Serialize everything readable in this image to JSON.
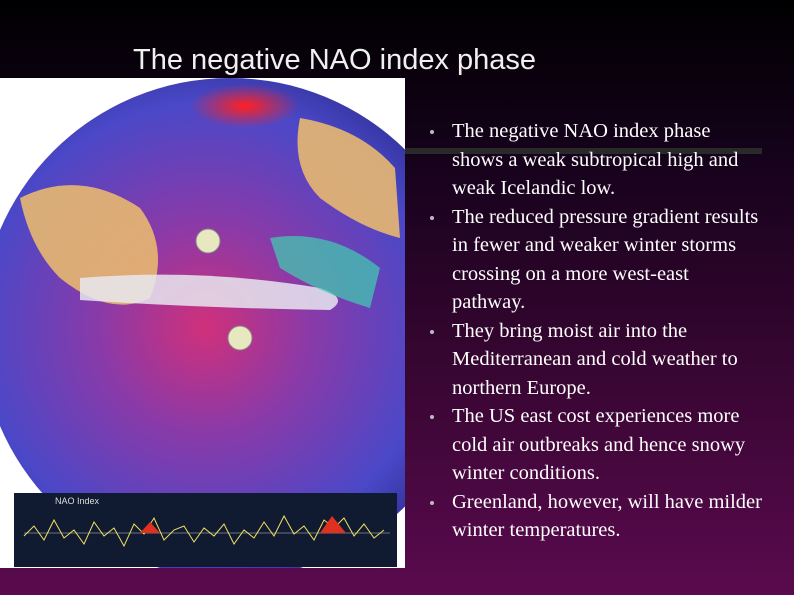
{
  "slide": {
    "title": "The negative NAO index phase",
    "image_label": "NAO Index",
    "bullets": [
      "The negative NAO index phase shows a weak subtropical high and weak Icelandic low.",
      "The reduced pressure gradient results in fewer and weaker winter storms crossing on a more west-east pathway.",
      "They bring moist air into the Mediterranean and cold weather to northern Europe.",
      "The US east cost experiences more cold air outbreaks and hence snowy winter conditions.",
      "Greenland, however, will have milder winter temperatures."
    ]
  }
}
